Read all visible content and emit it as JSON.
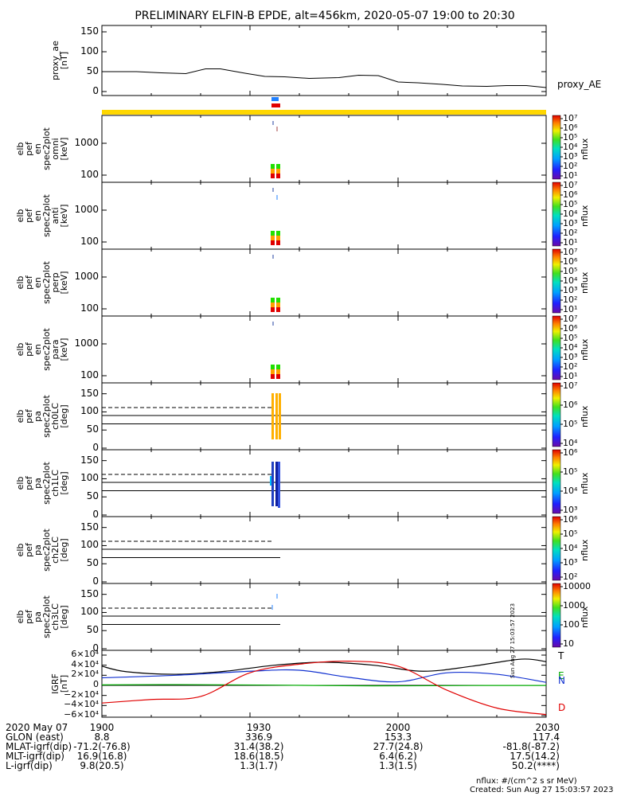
{
  "title": "PRELIMINARY ELFIN-B EPDE, alt=456km, 2020-05-07 19:00 to 20:30",
  "panels": [
    {
      "id": "proxy_ae",
      "ylabel_lines": [
        "proxy_ae",
        "[nT]"
      ],
      "yticks": [
        "150",
        "100",
        "50",
        "0"
      ],
      "side_label": "proxy_AE"
    },
    {
      "id": "spec_omni",
      "ylabel_lines": [
        "elb",
        "pef",
        "en",
        "spec2plot",
        "omni",
        "[keV]"
      ],
      "yticks": [
        "1000",
        "100"
      ]
    },
    {
      "id": "spec_anti",
      "ylabel_lines": [
        "elb",
        "pef",
        "en",
        "spec2plot",
        "anti",
        "[keV]"
      ],
      "yticks": [
        "1000",
        "100"
      ]
    },
    {
      "id": "spec_perp",
      "ylabel_lines": [
        "elb",
        "pef",
        "en",
        "spec2plot",
        "perp",
        "[keV]"
      ],
      "yticks": [
        "1000",
        "100"
      ]
    },
    {
      "id": "spec_para",
      "ylabel_lines": [
        "elb",
        "pef",
        "en",
        "spec2plot",
        "para",
        "[keV]"
      ],
      "yticks": [
        "1000",
        "100"
      ]
    },
    {
      "id": "pa_ch0",
      "ylabel_lines": [
        "elb",
        "pef",
        "pa",
        "spec2plot",
        "ch0LC",
        "[deg]"
      ],
      "yticks": [
        "150",
        "100",
        "50",
        "0"
      ]
    },
    {
      "id": "pa_ch1",
      "ylabel_lines": [
        "elb",
        "pef",
        "pa",
        "spec2plot",
        "ch1LC",
        "[deg]"
      ],
      "yticks": [
        "150",
        "100",
        "50",
        "0"
      ]
    },
    {
      "id": "pa_ch2",
      "ylabel_lines": [
        "elb",
        "pef",
        "pa",
        "spec2plot",
        "ch2LC",
        "[deg]"
      ],
      "yticks": [
        "150",
        "100",
        "50",
        "0"
      ]
    },
    {
      "id": "pa_ch3",
      "ylabel_lines": [
        "elb",
        "pef",
        "pa",
        "spec2plot",
        "ch3LC",
        "[deg]"
      ],
      "yticks": [
        "150",
        "100",
        "50",
        "0"
      ]
    },
    {
      "id": "igrf",
      "ylabel_lines": [
        "IGRF",
        "[nT]"
      ],
      "yticks": [
        "6×10⁴",
        "4×10⁴",
        "2×10⁴",
        "0",
        "−2×10⁴",
        "−4×10⁴",
        "−6×10⁴"
      ]
    }
  ],
  "colorbars": [
    {
      "ticks": [
        "10⁷",
        "10⁶",
        "10⁵",
        "10⁴",
        "10³",
        "10²",
        "10¹"
      ],
      "label": "nflux"
    },
    {
      "ticks": [
        "10⁷",
        "10⁶",
        "10⁵",
        "10⁴",
        "10³",
        "10²",
        "10¹"
      ],
      "label": "nflux"
    },
    {
      "ticks": [
        "10⁷",
        "10⁶",
        "10⁵",
        "10⁴",
        "10³",
        "10²",
        "10¹"
      ],
      "label": "nflux"
    },
    {
      "ticks": [
        "10⁷",
        "10⁶",
        "10⁵",
        "10⁴",
        "10³",
        "10²",
        "10¹"
      ],
      "label": "nflux"
    },
    {
      "ticks": [
        "10⁷",
        "10⁶",
        "10⁵",
        "10⁴"
      ],
      "label": "nflux"
    },
    {
      "ticks": [
        "10⁶",
        "10⁵",
        "10⁴",
        "10³"
      ],
      "label": "nflux"
    },
    {
      "ticks": [
        "10⁶",
        "10⁵",
        "10⁴",
        "10³",
        "10²"
      ],
      "label": "nflux"
    },
    {
      "ticks": [
        "10000",
        "1000",
        "100",
        "10"
      ],
      "label": "nflux"
    }
  ],
  "igrf_labels": [
    "T",
    "E",
    "N",
    "D"
  ],
  "footer": {
    "rows": [
      {
        "label": "2020 May 07",
        "values": [
          "1900",
          "1930",
          "2000",
          "2030"
        ]
      },
      {
        "label": "GLON (east)",
        "values": [
          "8.8",
          "336.9",
          "153.3",
          "117.4"
        ]
      },
      {
        "label": "MLAT-igrf(dip)",
        "values": [
          "-71.2(-76.8)",
          "31.4(38.2)",
          "27.7(24.8)",
          "-81.8(-87.2)"
        ]
      },
      {
        "label": "MLT-igrf(dip)",
        "values": [
          "16.9(16.8)",
          "18.6(18.5)",
          "6.4(6.2)",
          "17.5(14.2)"
        ]
      },
      {
        "label": "L-igrf(dip)",
        "values": [
          "9.8(20.5)",
          "1.3(1.7)",
          "1.3(1.5)",
          "50.2(****)"
        ]
      }
    ],
    "units_note": "nflux: #/(cm^2 s sr MeV)",
    "created": "Created: Sun Aug 27 15:03:57 2023",
    "side_stamp": "Sun Aug 27 15:03:57 2023"
  },
  "colors": {
    "state_bar": "#ffd700",
    "igrf_T": "#000000",
    "igrf_E": "#00aa00",
    "igrf_N": "#1030d0",
    "igrf_D": "#e00000"
  },
  "chart_data": {
    "type": "line",
    "time_range": [
      "2020-05-07 19:00",
      "2020-05-07 20:30"
    ],
    "x_ticks": [
      "1900",
      "1930",
      "2000",
      "2030"
    ],
    "proxy_ae": {
      "ylim": [
        0,
        150
      ],
      "t": [
        "19:00",
        "19:07",
        "19:12",
        "19:17",
        "19:21",
        "19:24",
        "19:29",
        "19:33",
        "19:37",
        "19:42",
        "19:48",
        "19:52",
        "19:56",
        "20:00",
        "20:04",
        "20:09",
        "20:13",
        "20:18",
        "20:22",
        "20:26",
        "20:30"
      ],
      "values": [
        50,
        50,
        47,
        45,
        57,
        57,
        46,
        38,
        37,
        33,
        35,
        41,
        40,
        24,
        22,
        18,
        14,
        13,
        15,
        15,
        10
      ]
    },
    "spectra_energy_ylim": [
      60,
      7000
    ],
    "pitch_angle_ylim": [
      0,
      180
    ],
    "loss_cone_deg": [
      112,
      90,
      67
    ],
    "igrf": {
      "ylim": [
        -65000,
        65000
      ],
      "series": [
        {
          "name": "T",
          "t": [
            "19:00",
            "19:05",
            "19:15",
            "19:25",
            "19:35",
            "19:45",
            "19:55",
            "20:05",
            "20:15",
            "20:25",
            "20:30"
          ],
          "values": [
            38000,
            27000,
            22000,
            28000,
            40000,
            46000,
            40000,
            28000,
            38000,
            52000,
            47000
          ]
        },
        {
          "name": "E",
          "t": [
            "19:00",
            "19:15",
            "19:35",
            "19:55",
            "20:15",
            "20:30"
          ],
          "values": [
            1000,
            1500,
            500,
            -1000,
            -300,
            -200
          ]
        },
        {
          "name": "N",
          "t": [
            "19:00",
            "19:15",
            "19:30",
            "19:40",
            "19:50",
            "20:00",
            "20:10",
            "20:20",
            "20:30"
          ],
          "values": [
            15000,
            20000,
            28000,
            30000,
            16000,
            7000,
            25000,
            22000,
            6000
          ]
        },
        {
          "name": "D",
          "t": [
            "19:00",
            "19:10",
            "19:20",
            "19:30",
            "19:40",
            "19:50",
            "20:00",
            "20:10",
            "20:20",
            "20:30"
          ],
          "values": [
            -35000,
            -28000,
            -22000,
            25000,
            42000,
            48000,
            38000,
            -10000,
            -45000,
            -58000
          ]
        }
      ]
    }
  }
}
